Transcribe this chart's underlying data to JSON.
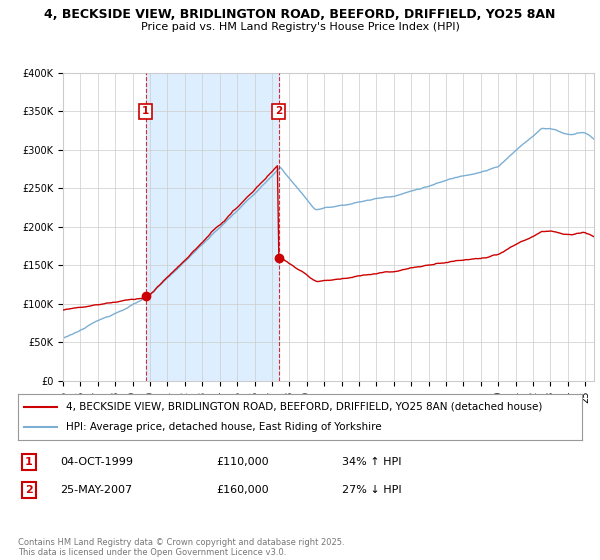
{
  "title_line1": "4, BECKSIDE VIEW, BRIDLINGTON ROAD, BEEFORD, DRIFFIELD, YO25 8AN",
  "title_line2": "Price paid vs. HM Land Registry's House Price Index (HPI)",
  "ylim": [
    0,
    400000
  ],
  "yticks": [
    0,
    50000,
    100000,
    150000,
    200000,
    250000,
    300000,
    350000,
    400000
  ],
  "ytick_labels": [
    "£0",
    "£50K",
    "£100K",
    "£150K",
    "£200K",
    "£250K",
    "£300K",
    "£350K",
    "£400K"
  ],
  "xlim_start": 1995,
  "xlim_end": 2025.5,
  "red_color": "#cc0000",
  "blue_color": "#7bafd4",
  "shade_color": "#ddeeff",
  "dashed_line_color": "#cc0000",
  "background_color": "#ffffff",
  "grid_color": "#cccccc",
  "legend_label_red": "4, BECKSIDE VIEW, BRIDLINGTON ROAD, BEEFORD, DRIFFIELD, YO25 8AN (detached house)",
  "legend_label_blue": "HPI: Average price, detached house, East Riding of Yorkshire",
  "sale1_label": "1",
  "sale1_date": "04-OCT-1999",
  "sale1_price": "£110,000",
  "sale1_pct": "34% ↑ HPI",
  "sale1_year": 1999.75,
  "sale1_value": 110000,
  "sale2_label": "2",
  "sale2_date": "25-MAY-2007",
  "sale2_price": "£160,000",
  "sale2_pct": "27% ↓ HPI",
  "sale2_year": 2007.38,
  "sale2_value": 160000,
  "copyright_text": "Contains HM Land Registry data © Crown copyright and database right 2025.\nThis data is licensed under the Open Government Licence v3.0.",
  "title_fontsize": 9,
  "subtitle_fontsize": 8,
  "tick_fontsize": 7,
  "legend_fontsize": 7.5,
  "annotation_fontsize": 8
}
